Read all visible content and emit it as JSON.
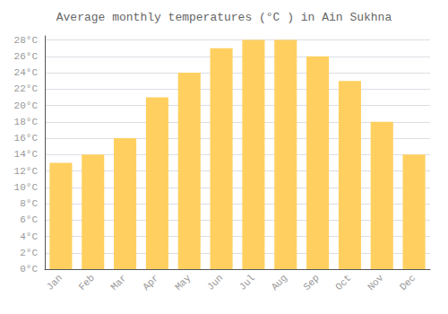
{
  "chart_data": {
    "type": "bar",
    "title": "Average monthly temperatures (°C ) in Ain Sukhna",
    "categories": [
      "Jan",
      "Feb",
      "Mar",
      "Apr",
      "May",
      "Jun",
      "Jul",
      "Aug",
      "Sep",
      "Oct",
      "Nov",
      "Dec"
    ],
    "values": [
      13,
      14,
      16,
      21,
      24,
      27,
      28,
      28,
      26,
      23,
      18,
      14
    ],
    "color": "#FFD060",
    "ylim": [
      0,
      28.5
    ],
    "yticks": [
      {
        "value": 0,
        "label": "0°C"
      },
      {
        "value": 2,
        "label": "2°C"
      },
      {
        "value": 4,
        "label": "4°C"
      },
      {
        "value": 6,
        "label": "6°C"
      },
      {
        "value": 8,
        "label": "8°C"
      },
      {
        "value": 10,
        "label": "10°C"
      },
      {
        "value": 12,
        "label": "12°C"
      },
      {
        "value": 14,
        "label": "14°C"
      },
      {
        "value": 16,
        "label": "16°C"
      },
      {
        "value": 18,
        "label": "18°C"
      },
      {
        "value": 20,
        "label": "20°C"
      },
      {
        "value": 22,
        "label": "22°C"
      },
      {
        "value": 24,
        "label": "24°C"
      },
      {
        "value": 26,
        "label": "26°C"
      },
      {
        "value": 28,
        "label": "28°C"
      }
    ],
    "grid": true
  }
}
